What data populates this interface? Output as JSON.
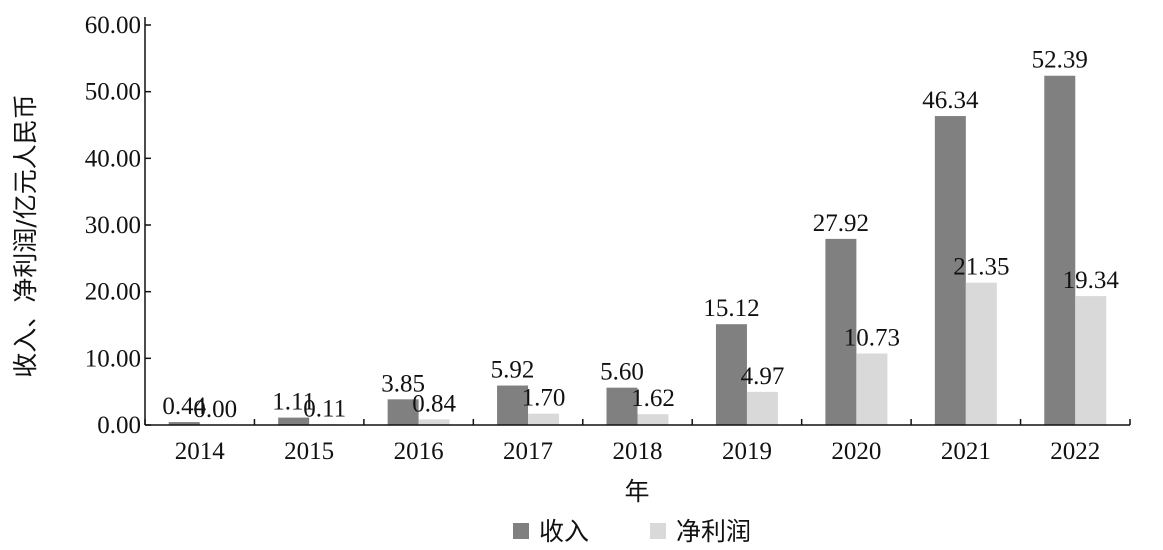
{
  "chart_data": {
    "type": "bar",
    "title": "",
    "xlabel": "年",
    "ylabel": "收入、净利润/亿元人民币",
    "categories": [
      "2014",
      "2015",
      "2016",
      "2017",
      "2018",
      "2019",
      "2020",
      "2021",
      "2022"
    ],
    "series": [
      {
        "name": "收入",
        "color": "#808080",
        "values": [
          0.44,
          1.11,
          3.85,
          5.92,
          5.6,
          15.12,
          27.92,
          46.34,
          52.39
        ]
      },
      {
        "name": "净利润",
        "color": "#d9d9d9",
        "values": [
          0.0,
          0.11,
          0.84,
          1.7,
          1.62,
          4.97,
          10.73,
          21.35,
          19.34
        ]
      }
    ],
    "data_labels": [
      [
        "0.44",
        "1.11",
        "3.85",
        "5.92",
        "5.60",
        "15.12",
        "27.92",
        "46.34",
        "52.39"
      ],
      [
        "0.00",
        "0.11",
        "0.84",
        "1.70",
        "1.62",
        "4.97",
        "10.73",
        "21.35",
        "19.34"
      ]
    ],
    "yticks": [
      "0.00",
      "10.00",
      "20.00",
      "30.00",
      "40.00",
      "50.00",
      "60.00"
    ],
    "ylim": [
      0,
      60
    ],
    "grid": false,
    "legend_position": "bottom-center"
  }
}
